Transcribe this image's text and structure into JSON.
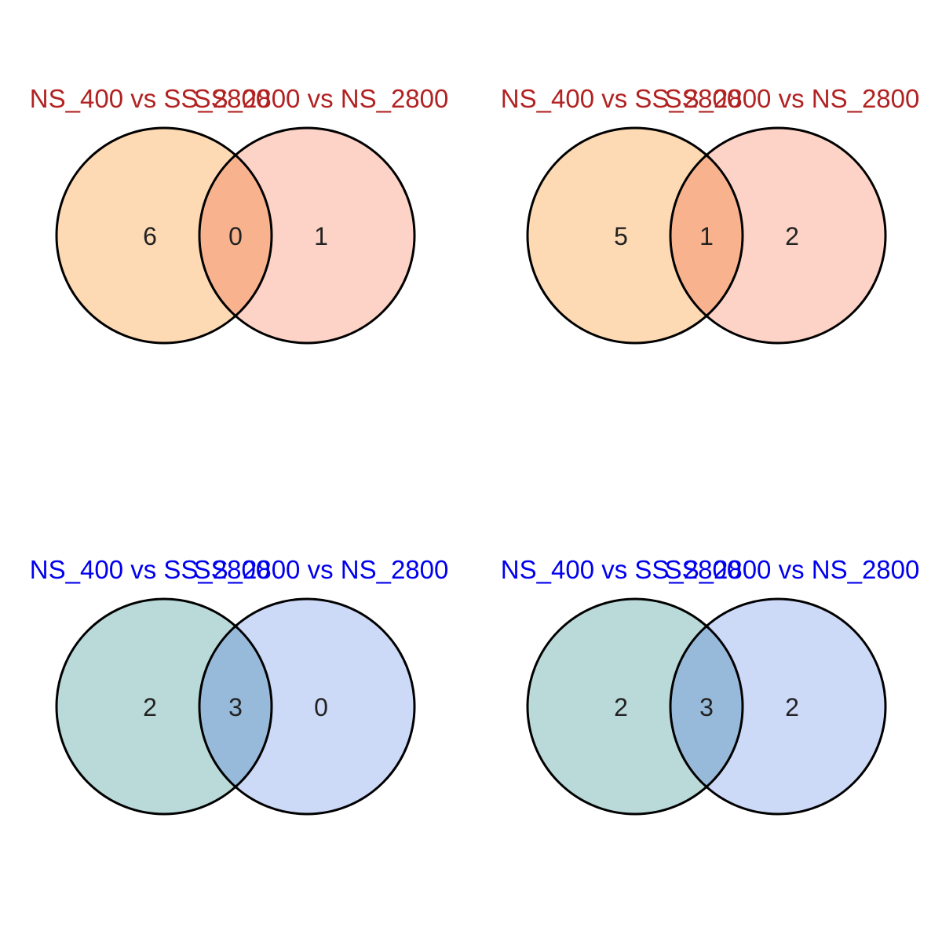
{
  "panels": [
    {
      "set_a_label": "NS_400 vs SS_2800",
      "set_b_label": "SS_2800 vs NS_2800",
      "label_color": "#b22222",
      "fill_a": "#fdd9b4",
      "fill_b": "#fdd3c7",
      "fill_overlap": "#f8b38e",
      "counts": {
        "only_a": "6",
        "overlap": "0",
        "only_b": "1"
      }
    },
    {
      "set_a_label": "NS_400 vs SS_2800",
      "set_b_label": "SS_2800 vs NS_2800",
      "label_color": "#b22222",
      "fill_a": "#fdd9b4",
      "fill_b": "#fdd3c7",
      "fill_overlap": "#f8b38e",
      "counts": {
        "only_a": "5",
        "overlap": "1",
        "only_b": "2"
      }
    },
    {
      "set_a_label": "NS_400 vs SS_2800",
      "set_b_label": "SS_2800 vs NS_2800",
      "label_color": "#0000ee",
      "fill_a": "#bad9d9",
      "fill_b": "#ccd9f7",
      "fill_overlap": "#97bada",
      "counts": {
        "only_a": "2",
        "overlap": "3",
        "only_b": "0"
      }
    },
    {
      "set_a_label": "NS_400 vs SS_2800",
      "set_b_label": "SS_2800 vs NS_2800",
      "label_color": "#0000ee",
      "fill_a": "#bad9d9",
      "fill_b": "#ccd9f7",
      "fill_overlap": "#97bada",
      "counts": {
        "only_a": "2",
        "overlap": "3",
        "only_b": "2"
      }
    }
  ]
}
